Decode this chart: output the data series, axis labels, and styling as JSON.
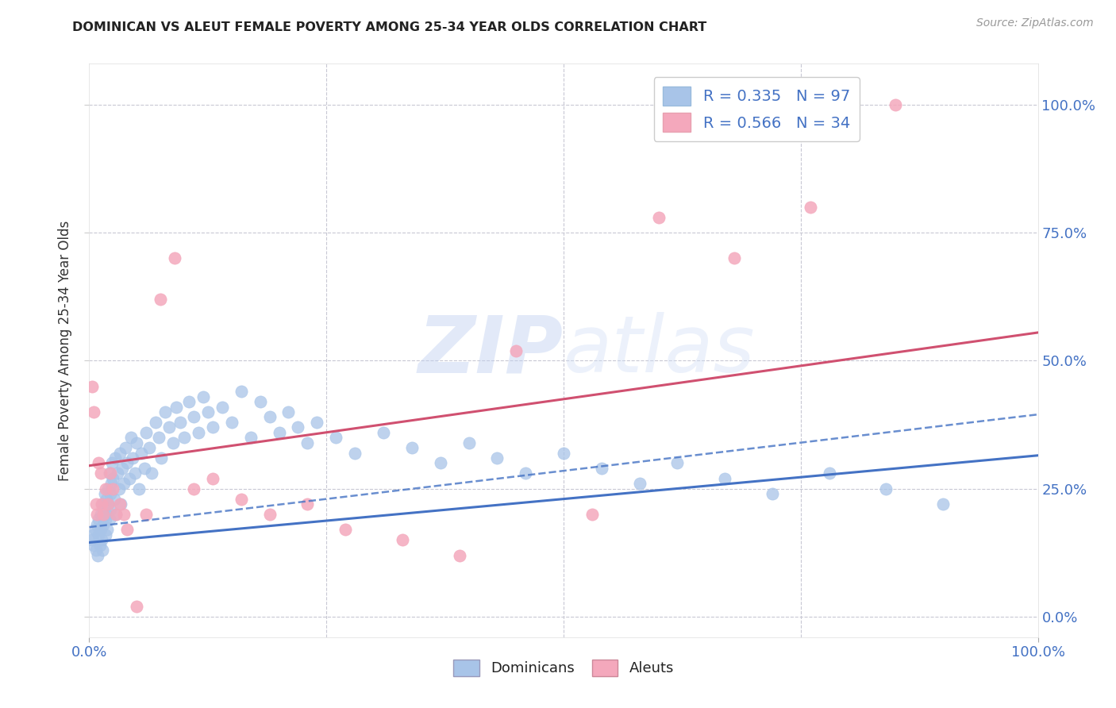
{
  "title": "DOMINICAN VS ALEUT FEMALE POVERTY AMONG 25-34 YEAR OLDS CORRELATION CHART",
  "source": "Source: ZipAtlas.com",
  "ylabel": "Female Poverty Among 25-34 Year Olds",
  "watermark": "ZIPatlas",
  "dominican_R": 0.335,
  "dominican_N": 97,
  "aleut_R": 0.566,
  "aleut_N": 34,
  "dominican_color": "#a8c4e8",
  "aleut_color": "#f4a8bc",
  "dominican_line_color": "#4472c4",
  "aleut_line_color": "#d05070",
  "background_color": "#ffffff",
  "grid_color": "#c8c8d4",
  "dominican_x": [
    0.003,
    0.004,
    0.005,
    0.006,
    0.007,
    0.008,
    0.009,
    0.01,
    0.01,
    0.011,
    0.012,
    0.012,
    0.013,
    0.014,
    0.014,
    0.015,
    0.015,
    0.016,
    0.017,
    0.017,
    0.018,
    0.018,
    0.019,
    0.02,
    0.02,
    0.021,
    0.021,
    0.022,
    0.022,
    0.023,
    0.024,
    0.025,
    0.026,
    0.027,
    0.028,
    0.03,
    0.031,
    0.032,
    0.033,
    0.035,
    0.036,
    0.038,
    0.04,
    0.042,
    0.044,
    0.046,
    0.048,
    0.05,
    0.052,
    0.055,
    0.058,
    0.06,
    0.063,
    0.066,
    0.07,
    0.073,
    0.076,
    0.08,
    0.084,
    0.088,
    0.092,
    0.096,
    0.1,
    0.105,
    0.11,
    0.115,
    0.12,
    0.125,
    0.13,
    0.14,
    0.15,
    0.16,
    0.17,
    0.18,
    0.19,
    0.2,
    0.21,
    0.22,
    0.23,
    0.24,
    0.26,
    0.28,
    0.31,
    0.34,
    0.37,
    0.4,
    0.43,
    0.46,
    0.5,
    0.54,
    0.58,
    0.62,
    0.67,
    0.72,
    0.78,
    0.84,
    0.9
  ],
  "dominican_y": [
    0.15,
    0.16,
    0.14,
    0.17,
    0.13,
    0.18,
    0.12,
    0.19,
    0.16,
    0.14,
    0.2,
    0.17,
    0.15,
    0.22,
    0.13,
    0.21,
    0.18,
    0.24,
    0.19,
    0.16,
    0.23,
    0.2,
    0.17,
    0.25,
    0.22,
    0.19,
    0.28,
    0.24,
    0.21,
    0.26,
    0.3,
    0.27,
    0.23,
    0.31,
    0.2,
    0.28,
    0.25,
    0.32,
    0.22,
    0.29,
    0.26,
    0.33,
    0.3,
    0.27,
    0.35,
    0.31,
    0.28,
    0.34,
    0.25,
    0.32,
    0.29,
    0.36,
    0.33,
    0.28,
    0.38,
    0.35,
    0.31,
    0.4,
    0.37,
    0.34,
    0.41,
    0.38,
    0.35,
    0.42,
    0.39,
    0.36,
    0.43,
    0.4,
    0.37,
    0.41,
    0.38,
    0.44,
    0.35,
    0.42,
    0.39,
    0.36,
    0.4,
    0.37,
    0.34,
    0.38,
    0.35,
    0.32,
    0.36,
    0.33,
    0.3,
    0.34,
    0.31,
    0.28,
    0.32,
    0.29,
    0.26,
    0.3,
    0.27,
    0.24,
    0.28,
    0.25,
    0.22
  ],
  "aleut_x": [
    0.003,
    0.005,
    0.007,
    0.008,
    0.01,
    0.012,
    0.013,
    0.015,
    0.017,
    0.02,
    0.022,
    0.025,
    0.028,
    0.032,
    0.036,
    0.04,
    0.05,
    0.06,
    0.075,
    0.09,
    0.11,
    0.13,
    0.16,
    0.19,
    0.23,
    0.27,
    0.33,
    0.39,
    0.45,
    0.53,
    0.6,
    0.68,
    0.76,
    0.85
  ],
  "aleut_y": [
    0.45,
    0.4,
    0.22,
    0.2,
    0.3,
    0.28,
    0.22,
    0.2,
    0.25,
    0.22,
    0.28,
    0.25,
    0.2,
    0.22,
    0.2,
    0.17,
    0.02,
    0.2,
    0.62,
    0.7,
    0.25,
    0.27,
    0.23,
    0.2,
    0.22,
    0.17,
    0.15,
    0.12,
    0.52,
    0.2,
    0.78,
    0.7,
    0.8,
    1.0
  ],
  "xlim": [
    0.0,
    1.0
  ],
  "ylim": [
    -0.04,
    1.08
  ],
  "xtick_positions": [
    0.0,
    1.0
  ],
  "xtick_labels": [
    "0.0%",
    "100.0%"
  ],
  "ytick_positions": [
    0.0,
    0.25,
    0.5,
    0.75,
    1.0
  ],
  "ytick_labels": [
    "0.0%",
    "25.0%",
    "50.0%",
    "75.0%",
    "100.0%"
  ],
  "dom_line_start": 0.145,
  "dom_line_end": 0.315,
  "ale_line_start": 0.295,
  "ale_line_end": 0.555,
  "dashed_line_start": 0.175,
  "dashed_line_end": 0.395
}
